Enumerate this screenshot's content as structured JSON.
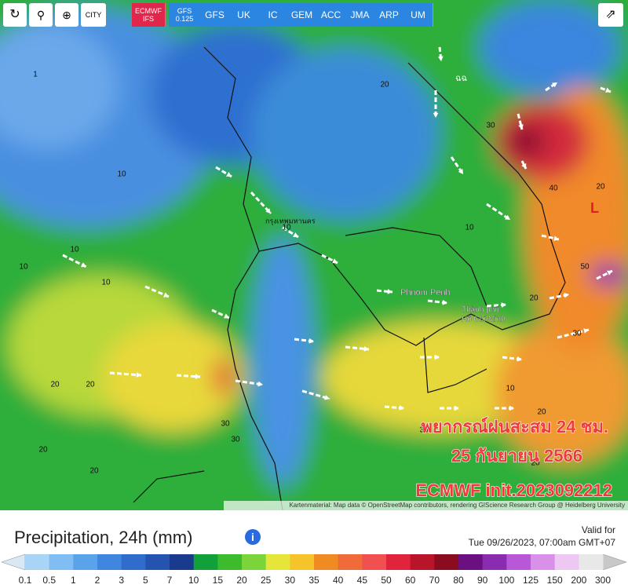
{
  "toolbar": {
    "city": "CITY",
    "active_model": 0,
    "models": [
      {
        "name": "ECMWF",
        "sub": "IFS"
      },
      {
        "name": "GFS",
        "sub": "0.125"
      },
      {
        "name": "GFS"
      },
      {
        "name": "UK"
      },
      {
        "name": "IC"
      },
      {
        "name": "GEM"
      },
      {
        "name": "ACC"
      },
      {
        "name": "JMA"
      },
      {
        "name": "ARP"
      },
      {
        "name": "UM"
      }
    ]
  },
  "map": {
    "places": [
      "กรุงเทพมหานคร",
      "Phnom Penh",
      "Thành phố",
      "Hồ Chí Minh",
      "L"
    ],
    "labels": [
      "1",
      "10",
      "10",
      "10",
      "20",
      "20",
      "20",
      "30",
      "30",
      "20",
      "10",
      "10",
      "20",
      "30",
      "40",
      "50",
      "20",
      "10",
      "20",
      "30",
      "20",
      "30",
      "20",
      "10"
    ],
    "forecast": {
      "title": "พยากรณ์ฝนสะสม 24 ชม.",
      "date": "25 กันยายน 2566",
      "model": "ECMWF init.2023092212"
    },
    "attribution": "Kartenmaterial: Map data © OpenStreetMap contributors, rendering GIScience Research Group @ Heidelberg University"
  },
  "footer": {
    "title": "Precipitation, 24h (mm)",
    "valid_label": "Valid for",
    "valid_time": "Tue 09/26/2023, 07:00am GMT+07",
    "legend": {
      "labels": [
        "0.1",
        "0.5",
        "1",
        "2",
        "3",
        "5",
        "7",
        "10",
        "15",
        "20",
        "25",
        "30",
        "35",
        "40",
        "45",
        "50",
        "60",
        "70",
        "80",
        "90",
        "100",
        "125",
        "150",
        "200",
        "300"
      ],
      "low_color": "#d9e8f5",
      "high_color": "#c8c8c8",
      "colors": [
        "#a8d4f6",
        "#7fbdf2",
        "#5aa2ea",
        "#3f86de",
        "#2f6ccc",
        "#2553b0",
        "#1a3a8e",
        "#12a03a",
        "#3cbc2c",
        "#7ad43a",
        "#e6e63a",
        "#f4c42a",
        "#f08a22",
        "#f06a3a",
        "#f05050",
        "#e0243c",
        "#b8142a",
        "#8a0c1e",
        "#6a1080",
        "#8a2cb0",
        "#b858d8",
        "#d890e8",
        "#ecc8f2",
        "#e8e8e8"
      ]
    }
  }
}
